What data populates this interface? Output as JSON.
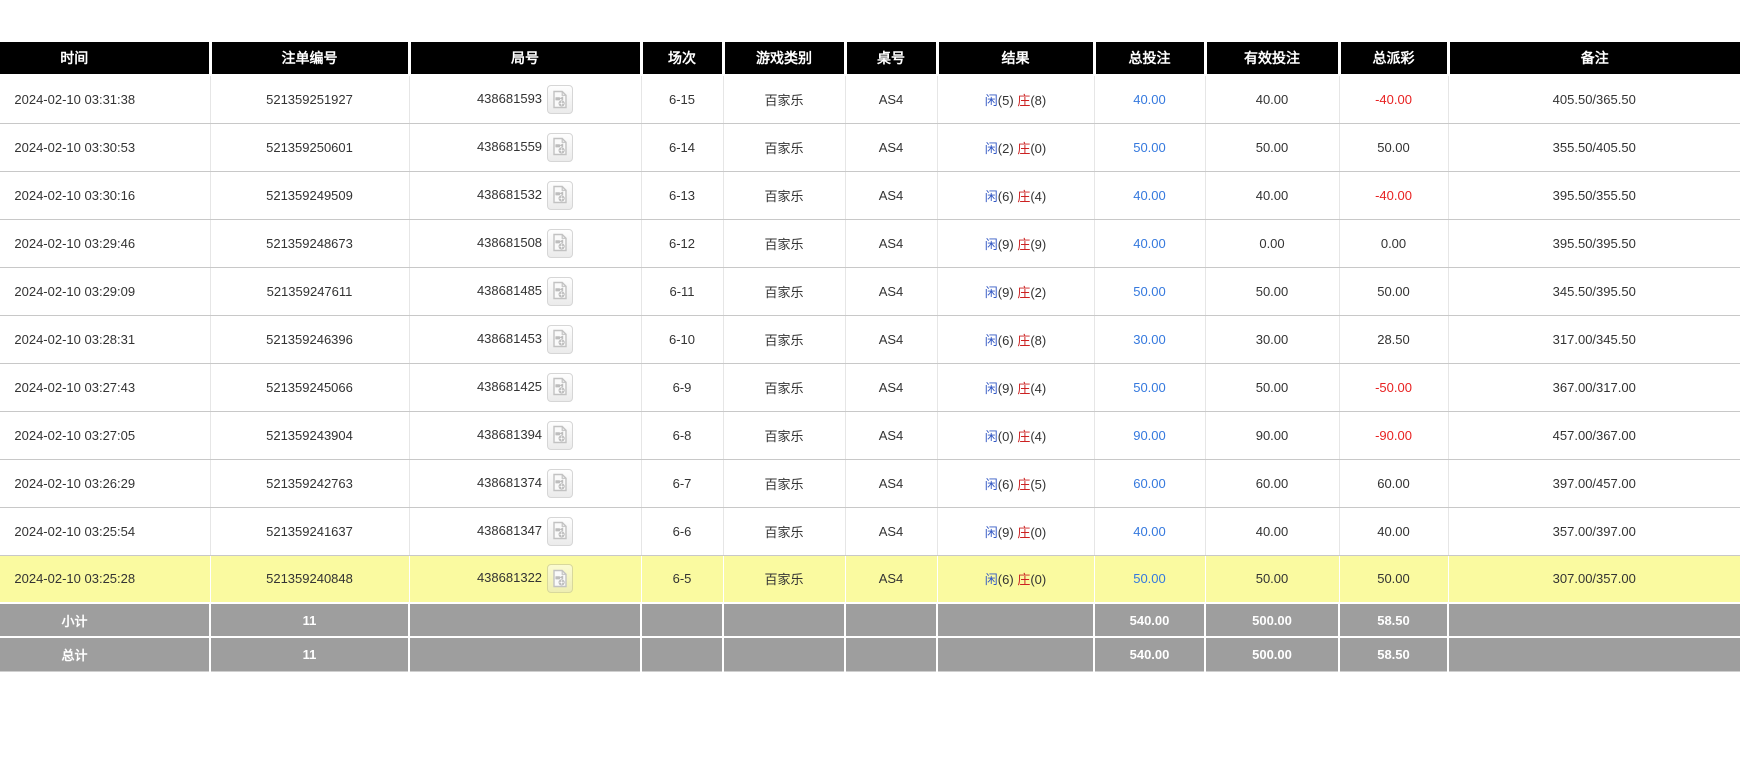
{
  "table": {
    "columns": [
      {
        "key": "time",
        "label": "时间"
      },
      {
        "key": "order_no",
        "label": "注单编号"
      },
      {
        "key": "round_no",
        "label": "局号"
      },
      {
        "key": "session",
        "label": "场次"
      },
      {
        "key": "game",
        "label": "游戏类别"
      },
      {
        "key": "table_no",
        "label": "桌号"
      },
      {
        "key": "result",
        "label": "结果"
      },
      {
        "key": "total_bet",
        "label": "总投注"
      },
      {
        "key": "valid_bet",
        "label": "有效投注"
      },
      {
        "key": "payout",
        "label": "总派彩"
      },
      {
        "key": "remark",
        "label": "备注"
      }
    ],
    "result_labels": {
      "player": "闲",
      "banker": "庄"
    },
    "icons": {
      "round_video": "video-replay-icon"
    },
    "rows": [
      {
        "time": "2024-02-10 03:31:38",
        "order_no": "521359251927",
        "round_no": "438681593",
        "session": "6-15",
        "game": "百家乐",
        "table_no": "AS4",
        "result": {
          "player": 5,
          "banker": 8
        },
        "total_bet": "40.00",
        "valid_bet": "40.00",
        "payout": "-40.00",
        "remark": "405.50/365.50",
        "highlighted": false
      },
      {
        "time": "2024-02-10 03:30:53",
        "order_no": "521359250601",
        "round_no": "438681559",
        "session": "6-14",
        "game": "百家乐",
        "table_no": "AS4",
        "result": {
          "player": 2,
          "banker": 0
        },
        "total_bet": "50.00",
        "valid_bet": "50.00",
        "payout": "50.00",
        "remark": "355.50/405.50",
        "highlighted": false
      },
      {
        "time": "2024-02-10 03:30:16",
        "order_no": "521359249509",
        "round_no": "438681532",
        "session": "6-13",
        "game": "百家乐",
        "table_no": "AS4",
        "result": {
          "player": 6,
          "banker": 4
        },
        "total_bet": "40.00",
        "valid_bet": "40.00",
        "payout": "-40.00",
        "remark": "395.50/355.50",
        "highlighted": false
      },
      {
        "time": "2024-02-10 03:29:46",
        "order_no": "521359248673",
        "round_no": "438681508",
        "session": "6-12",
        "game": "百家乐",
        "table_no": "AS4",
        "result": {
          "player": 9,
          "banker": 9
        },
        "total_bet": "40.00",
        "valid_bet": "0.00",
        "payout": "0.00",
        "remark": "395.50/395.50",
        "highlighted": false
      },
      {
        "time": "2024-02-10 03:29:09",
        "order_no": "521359247611",
        "round_no": "438681485",
        "session": "6-11",
        "game": "百家乐",
        "table_no": "AS4",
        "result": {
          "player": 9,
          "banker": 2
        },
        "total_bet": "50.00",
        "valid_bet": "50.00",
        "payout": "50.00",
        "remark": "345.50/395.50",
        "highlighted": false
      },
      {
        "time": "2024-02-10 03:28:31",
        "order_no": "521359246396",
        "round_no": "438681453",
        "session": "6-10",
        "game": "百家乐",
        "table_no": "AS4",
        "result": {
          "player": 6,
          "banker": 8
        },
        "total_bet": "30.00",
        "valid_bet": "30.00",
        "payout": "28.50",
        "remark": "317.00/345.50",
        "highlighted": false
      },
      {
        "time": "2024-02-10 03:27:43",
        "order_no": "521359245066",
        "round_no": "438681425",
        "session": "6-9",
        "game": "百家乐",
        "table_no": "AS4",
        "result": {
          "player": 9,
          "banker": 4
        },
        "total_bet": "50.00",
        "valid_bet": "50.00",
        "payout": "-50.00",
        "remark": "367.00/317.00",
        "highlighted": false
      },
      {
        "time": "2024-02-10 03:27:05",
        "order_no": "521359243904",
        "round_no": "438681394",
        "session": "6-8",
        "game": "百家乐",
        "table_no": "AS4",
        "result": {
          "player": 0,
          "banker": 4
        },
        "total_bet": "90.00",
        "valid_bet": "90.00",
        "payout": "-90.00",
        "remark": "457.00/367.00",
        "highlighted": false
      },
      {
        "time": "2024-02-10 03:26:29",
        "order_no": "521359242763",
        "round_no": "438681374",
        "session": "6-7",
        "game": "百家乐",
        "table_no": "AS4",
        "result": {
          "player": 6,
          "banker": 5
        },
        "total_bet": "60.00",
        "valid_bet": "60.00",
        "payout": "60.00",
        "remark": "397.00/457.00",
        "highlighted": false
      },
      {
        "time": "2024-02-10 03:25:54",
        "order_no": "521359241637",
        "round_no": "438681347",
        "session": "6-6",
        "game": "百家乐",
        "table_no": "AS4",
        "result": {
          "player": 9,
          "banker": 0
        },
        "total_bet": "40.00",
        "valid_bet": "40.00",
        "payout": "40.00",
        "remark": "357.00/397.00",
        "highlighted": false
      },
      {
        "time": "2024-02-10 03:25:28",
        "order_no": "521359240848",
        "round_no": "438681322",
        "session": "6-5",
        "game": "百家乐",
        "table_no": "AS4",
        "result": {
          "player": 6,
          "banker": 0
        },
        "total_bet": "50.00",
        "valid_bet": "50.00",
        "payout": "50.00",
        "remark": "307.00/357.00",
        "highlighted": true
      }
    ],
    "summary_rows": [
      {
        "label": "小计",
        "count": "11",
        "total_bet": "540.00",
        "valid_bet": "500.00",
        "payout": "58.50"
      },
      {
        "label": "总计",
        "count": "11",
        "total_bet": "540.00",
        "valid_bet": "500.00",
        "payout": "58.50"
      }
    ],
    "colors": {
      "header_black": "#000000",
      "player_blue": "#3358c4",
      "banker_red": "#cc2222",
      "bet_blue": "#3579de",
      "negative_red": "#e82222",
      "highlight_yellow": "#fafaa0",
      "summary_gray": "#9e9e9e"
    }
  }
}
